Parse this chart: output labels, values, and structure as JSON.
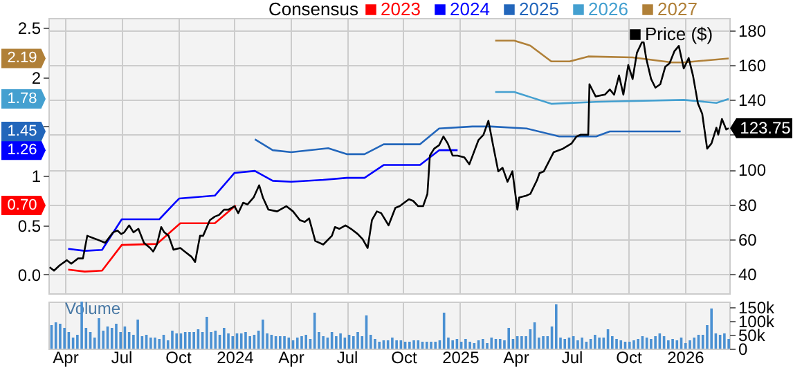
{
  "chart_data": [
    {
      "type": "line",
      "legend_title": "Consensus",
      "annotations": [
        "0.70",
        "1.26",
        "1.45",
        "1.78",
        "2.19"
      ],
      "legend": "top",
      "grid": true,
      "tick_labels": "y",
      "xlim": [
        "2023-03-05",
        "2026-03-14"
      ],
      "xticks": [
        {
          "value": "2023-04-01",
          "label": null
        },
        {
          "value": "2023-07-01",
          "label": null
        },
        {
          "value": "2023-10-01",
          "label": null
        },
        {
          "value": "2024-01-01",
          "label": null
        },
        {
          "value": "2024-04-01",
          "label": null
        },
        {
          "value": "2024-07-01",
          "label": null
        },
        {
          "value": "2024-10-01",
          "label": null
        },
        {
          "value": "2025-01-01",
          "label": null
        },
        {
          "value": "2025-04-01",
          "label": null
        },
        {
          "value": "2025-07-01",
          "label": null
        },
        {
          "value": "2025-10-01",
          "label": null
        },
        {
          "value": "2026-01-01",
          "label": null
        }
      ],
      "ylim": [
        -0.19,
        2.6
      ],
      "yticks": [
        {
          "value": 0,
          "label": "0.0"
        },
        0.5,
        1,
        {
          "value": 1.5,
          "label": null
        },
        2,
        2.5
      ],
      "y2lim": [
        29,
        187
      ],
      "y2ticks": [
        40,
        60,
        80,
        100,
        {
          "value": 120,
          "label": null
        },
        140,
        160,
        180
      ],
      "series": [
        {
          "name": "2023",
          "color": "#ff0000",
          "x": [
            "2023-04-06",
            "2023-05-03",
            "2023-05-31",
            "2023-07-02",
            "2023-08-28",
            "2023-10-05",
            "2023-11-30",
            "2024-01-03"
          ],
          "values": [
            0.05,
            0.03,
            0.04,
            0.3,
            0.31,
            0.52,
            0.52,
            0.7
          ]
        },
        {
          "name": "2024",
          "color": "#0000ff",
          "x": [
            "2023-04-06",
            "2023-05-03",
            "2023-05-31",
            "2023-07-02",
            "2023-09-01",
            "2023-10-03",
            "2023-11-30",
            "2024-01-01",
            "2024-02-03",
            "2024-03-03",
            "2024-04-02",
            "2024-05-24",
            "2024-07-01",
            "2024-07-30",
            "2024-08-30",
            "2024-10-28",
            "2024-11-28",
            "2024-12-28"
          ],
          "values": [
            0.26,
            0.24,
            0.25,
            0.56,
            0.56,
            0.77,
            0.8,
            1.03,
            1.05,
            0.95,
            0.94,
            0.96,
            0.98,
            0.98,
            1.11,
            1.11,
            1.26,
            1.26
          ]
        },
        {
          "name": "2025",
          "color": "#2266bb",
          "x": [
            "2024-02-03",
            "2024-03-03",
            "2024-04-02",
            "2024-06-01",
            "2024-07-01",
            "2024-07-30",
            "2024-08-30",
            "2024-10-28",
            "2024-11-28",
            "2025-01-21",
            "2025-02-20",
            "2025-04-19",
            "2025-06-11",
            "2025-08-10",
            "2025-09-01",
            "2025-12-25"
          ],
          "values": [
            1.37,
            1.26,
            1.24,
            1.28,
            1.22,
            1.22,
            1.32,
            1.32,
            1.48,
            1.5,
            1.5,
            1.48,
            1.4,
            1.4,
            1.45,
            1.45
          ]
        },
        {
          "name": "2026",
          "color": "#44a0d0",
          "x": [
            "2025-02-27",
            "2025-03-30",
            "2025-05-29",
            "2025-08-09",
            "2025-12-30",
            "2026-02-21",
            "2026-03-13"
          ],
          "values": [
            1.85,
            1.85,
            1.73,
            1.75,
            1.77,
            1.74,
            1.78
          ]
        },
        {
          "name": "2027",
          "color": "#b08038",
          "x": [
            "2025-02-27",
            "2025-03-30",
            "2025-04-25",
            "2025-05-29",
            "2025-06-28",
            "2025-07-28",
            "2025-10-08",
            "2025-12-11",
            "2025-12-30",
            "2026-03-13"
          ],
          "values": [
            2.37,
            2.37,
            2.32,
            2.16,
            2.16,
            2.21,
            2.2,
            2.15,
            2.15,
            2.19
          ]
        },
        {
          "name": "Price ($)",
          "color": "#000000",
          "axis": "y2",
          "x": [
            "2023-03-07",
            "2023-03-14",
            "2023-03-23",
            "2023-04-04",
            "2023-04-11",
            "2023-04-22",
            "2023-04-30",
            "2023-05-07",
            "2023-05-22",
            "2023-06-05",
            "2023-06-18",
            "2023-06-25",
            "2023-07-01",
            "2023-07-06",
            "2023-07-14",
            "2023-07-21",
            "2023-07-29",
            "2023-08-07",
            "2023-08-17",
            "2023-08-22",
            "2023-08-28",
            "2023-09-04",
            "2023-09-09",
            "2023-09-16",
            "2023-09-24",
            "2023-10-05",
            "2023-10-12",
            "2023-10-23",
            "2023-10-29",
            "2023-11-06",
            "2023-11-11",
            "2023-11-22",
            "2023-11-30",
            "2023-12-07",
            "2023-12-15",
            "2023-12-22",
            "2024-01-01",
            "2024-01-07",
            "2024-01-15",
            "2024-01-22",
            "2024-02-01",
            "2024-02-10",
            "2024-02-16",
            "2024-02-25",
            "2024-03-10",
            "2024-03-25",
            "2024-04-05",
            "2024-04-16",
            "2024-04-24",
            "2024-05-01",
            "2024-05-11",
            "2024-05-24",
            "2024-06-07",
            "2024-06-12",
            "2024-06-19",
            "2024-06-29",
            "2024-07-08",
            "2024-07-19",
            "2024-07-27",
            "2024-08-04",
            "2024-08-11",
            "2024-08-19",
            "2024-08-26",
            "2024-09-07",
            "2024-09-18",
            "2024-09-25",
            "2024-10-10",
            "2024-10-17",
            "2024-10-25",
            "2024-11-02",
            "2024-11-09",
            "2024-11-13",
            "2024-11-20",
            "2024-11-28",
            "2024-12-05",
            "2024-12-12",
            "2024-12-20",
            "2024-12-28",
            "2025-01-08",
            "2025-01-16",
            "2025-01-31",
            "2025-02-08",
            "2025-02-16",
            "2025-02-23",
            "2025-03-04",
            "2025-03-11",
            "2025-03-19",
            "2025-03-27",
            "2025-03-31",
            "2025-04-04",
            "2025-04-07",
            "2025-04-18",
            "2025-04-25",
            "2025-05-06",
            "2025-05-10",
            "2025-05-17",
            "2025-06-02",
            "2025-06-17",
            "2025-07-01",
            "2025-07-09",
            "2025-07-16",
            "2025-07-28",
            "2025-07-30",
            "2025-08-09",
            "2025-08-24",
            "2025-09-01",
            "2025-09-08",
            "2025-09-16",
            "2025-09-23",
            "2025-10-01",
            "2025-10-08",
            "2025-10-15",
            "2025-10-23",
            "2025-10-26",
            "2025-10-30",
            "2025-11-07",
            "2025-11-14",
            "2025-11-22",
            "2025-11-30",
            "2025-12-07",
            "2025-12-15",
            "2025-12-22",
            "2025-12-30",
            "2026-01-07",
            "2026-01-14",
            "2026-01-22",
            "2026-01-29",
            "2026-02-06",
            "2026-02-13",
            "2026-02-21",
            "2026-02-24",
            "2026-03-02",
            "2026-03-09",
            "2026-03-13"
          ],
          "values": [
            44,
            42,
            45,
            48,
            46,
            49,
            49,
            62,
            60,
            58,
            64,
            65,
            63,
            64,
            68,
            64,
            66,
            58,
            55,
            53,
            57,
            67,
            64,
            62,
            54,
            55,
            53,
            50,
            47,
            62,
            62,
            71,
            73,
            74,
            77,
            77,
            79,
            75,
            81,
            80,
            84,
            91,
            84,
            77,
            76,
            79,
            76,
            71,
            70,
            72,
            59,
            57,
            62,
            67,
            66,
            68,
            66,
            63,
            60,
            55,
            71,
            76,
            75,
            68,
            78,
            79,
            83,
            82,
            79,
            79,
            86,
            108,
            112,
            114,
            119,
            115,
            108,
            108,
            107,
            103,
            117,
            120,
            128,
            115,
            99,
            101,
            93,
            99,
            88,
            77,
            84,
            85,
            86,
            94,
            98,
            99,
            110,
            112,
            115,
            119,
            120,
            120,
            149,
            142,
            143,
            146,
            143,
            154,
            143,
            160,
            152,
            167,
            173,
            173,
            164,
            152,
            147,
            149,
            159,
            161,
            168,
            171,
            158,
            164,
            154,
            138,
            132,
            112,
            115,
            124,
            120,
            129,
            123,
            123.75
          ],
          "value_labels": [
            null,
            null,
            null,
            null,
            null,
            null,
            null,
            null,
            null,
            null,
            null,
            null,
            null,
            null,
            null,
            null,
            null,
            null,
            null,
            null,
            null,
            null,
            null,
            null,
            null,
            null,
            null,
            null,
            null,
            null,
            null,
            null,
            null,
            null,
            null,
            null,
            null,
            null,
            null,
            null,
            null,
            null,
            null,
            null,
            null,
            null,
            null,
            null,
            null,
            null,
            null,
            null,
            null,
            null,
            null,
            null,
            null,
            null,
            null,
            null,
            null,
            null,
            null,
            null,
            null,
            null,
            null,
            null,
            null,
            null,
            null,
            null,
            null,
            null,
            null,
            null,
            null,
            null,
            null,
            null,
            null,
            null,
            null,
            null,
            null,
            null,
            null,
            null,
            null,
            null,
            null,
            null,
            null,
            null,
            null,
            null,
            null,
            null,
            null,
            null,
            null,
            null,
            null,
            null,
            null,
            null,
            null,
            null,
            null,
            null,
            null,
            null,
            null,
            null,
            null,
            null,
            null,
            null,
            null,
            null,
            null,
            null,
            null,
            null,
            null,
            null,
            null,
            null,
            null,
            null,
            null,
            null,
            null,
            "123.75"
          ]
        }
      ]
    },
    {
      "type": "bar",
      "ylabel": "Volume",
      "grid": "x",
      "xlim": [
        "2023-03-05",
        "2026-03-14"
      ],
      "xticks": [
        {
          "value": "2023-04-01",
          "label": "Apr"
        },
        {
          "value": "2023-07-01",
          "label": "Jul"
        },
        {
          "value": "2023-10-01",
          "label": "Oct"
        },
        {
          "value": "2024-01-01",
          "label": "2024"
        },
        {
          "value": "2024-04-01",
          "label": "Apr"
        },
        {
          "value": "2024-07-01",
          "label": "Jul"
        },
        {
          "value": "2024-10-01",
          "label": "Oct"
        },
        {
          "value": "2025-01-01",
          "label": "2025"
        },
        {
          "value": "2025-04-01",
          "label": "Apr"
        },
        {
          "value": "2025-07-01",
          "label": "Jul"
        },
        {
          "value": "2025-10-01",
          "label": "Oct"
        },
        {
          "value": "2026-01-01",
          "label": "2026"
        }
      ],
      "ylim": [
        0,
        170
      ],
      "yticks": [
        0,
        {
          "value": 50,
          "label": "50k"
        },
        {
          "value": 100,
          "label": "100k"
        },
        {
          "value": 150,
          "label": "150k"
        }
      ],
      "x": [
        "2023-03-10",
        "2023-03-17",
        "2023-03-24",
        "2023-03-31",
        "2023-04-07",
        "2023-04-14",
        "2023-04-21",
        "2023-04-28",
        "2023-05-05",
        "2023-05-12",
        "2023-05-19",
        "2023-05-26",
        "2023-06-02",
        "2023-06-09",
        "2023-06-16",
        "2023-06-23",
        "2023-06-30",
        "2023-07-07",
        "2023-07-14",
        "2023-07-21",
        "2023-07-28",
        "2023-08-04",
        "2023-08-11",
        "2023-08-18",
        "2023-08-25",
        "2023-09-01",
        "2023-09-08",
        "2023-09-15",
        "2023-09-22",
        "2023-09-29",
        "2023-10-06",
        "2023-10-13",
        "2023-10-20",
        "2023-10-27",
        "2023-11-03",
        "2023-11-10",
        "2023-11-17",
        "2023-11-24",
        "2023-12-01",
        "2023-12-08",
        "2023-12-15",
        "2023-12-22",
        "2023-12-29",
        "2024-01-05",
        "2024-01-12",
        "2024-01-19",
        "2024-01-26",
        "2024-02-02",
        "2024-02-09",
        "2024-02-16",
        "2024-02-23",
        "2024-03-01",
        "2024-03-08",
        "2024-03-15",
        "2024-03-22",
        "2024-03-29",
        "2024-04-05",
        "2024-04-12",
        "2024-04-19",
        "2024-04-26",
        "2024-05-03",
        "2024-05-10",
        "2024-05-17",
        "2024-05-24",
        "2024-05-31",
        "2024-06-07",
        "2024-06-14",
        "2024-06-21",
        "2024-06-28",
        "2024-07-05",
        "2024-07-12",
        "2024-07-19",
        "2024-07-26",
        "2024-08-02",
        "2024-08-09",
        "2024-08-16",
        "2024-08-23",
        "2024-08-30",
        "2024-09-06",
        "2024-09-13",
        "2024-09-20",
        "2024-09-27",
        "2024-10-04",
        "2024-10-11",
        "2024-10-18",
        "2024-10-25",
        "2024-11-01",
        "2024-11-08",
        "2024-11-15",
        "2024-11-22",
        "2024-11-29",
        "2024-12-06",
        "2024-12-13",
        "2024-12-20",
        "2024-12-27",
        "2025-01-03",
        "2025-01-10",
        "2025-01-17",
        "2025-01-24",
        "2025-01-31",
        "2025-02-07",
        "2025-02-14",
        "2025-02-21",
        "2025-02-28",
        "2025-03-07",
        "2025-03-14",
        "2025-03-21",
        "2025-03-28",
        "2025-04-04",
        "2025-04-11",
        "2025-04-18",
        "2025-04-25",
        "2025-05-02",
        "2025-05-09",
        "2025-05-16",
        "2025-05-23",
        "2025-05-30",
        "2025-06-06",
        "2025-06-13",
        "2025-06-20",
        "2025-06-27",
        "2025-07-04",
        "2025-07-11",
        "2025-07-18",
        "2025-07-25",
        "2025-08-01",
        "2025-08-08",
        "2025-08-15",
        "2025-08-22",
        "2025-08-29",
        "2025-09-05",
        "2025-09-12",
        "2025-09-19",
        "2025-09-26",
        "2025-10-03",
        "2025-10-10",
        "2025-10-17",
        "2025-10-24",
        "2025-10-31",
        "2025-11-07",
        "2025-11-14",
        "2025-11-21",
        "2025-11-28",
        "2025-12-05",
        "2025-12-12",
        "2025-12-19",
        "2025-12-26",
        "2026-01-02",
        "2026-01-09",
        "2026-01-16",
        "2026-01-23",
        "2026-01-30",
        "2026-02-06",
        "2026-02-13",
        "2026-02-20",
        "2026-02-27",
        "2026-03-06",
        "2026-03-13"
      ],
      "series": [
        {
          "color": "#4a90d2",
          "values": [
            85,
            95,
            90,
            75,
            60,
            40,
            50,
            170,
            75,
            60,
            40,
            110,
            65,
            80,
            75,
            90,
            60,
            80,
            60,
            50,
            105,
            45,
            50,
            40,
            40,
            35,
            50,
            30,
            65,
            55,
            55,
            60,
            60,
            60,
            70,
            60,
            115,
            60,
            65,
            50,
            75,
            55,
            45,
            55,
            55,
            60,
            45,
            50,
            65,
            105,
            55,
            50,
            45,
            45,
            45,
            40,
            30,
            40,
            45,
            50,
            35,
            130,
            60,
            45,
            40,
            60,
            45,
            55,
            40,
            50,
            45,
            60,
            45,
            120,
            50,
            35,
            25,
            30,
            30,
            40,
            30,
            30,
            25,
            25,
            30,
            30,
            25,
            25,
            25,
            25,
            30,
            130,
            40,
            30,
            35,
            25,
            35,
            25,
            20,
            30,
            35,
            20,
            40,
            35,
            35,
            30,
            75,
            35,
            45,
            45,
            45,
            70,
            95,
            40,
            45,
            45,
            80,
            160,
            40,
            35,
            40,
            45,
            30,
            40,
            25,
            35,
            50,
            40,
            40,
            70,
            45,
            35,
            30,
            25,
            25,
            30,
            35,
            45,
            40,
            35,
            45,
            55,
            45,
            30,
            35,
            30,
            40,
            20,
            30,
            40,
            50,
            50,
            85,
            145,
            55,
            50,
            55,
            35
          ]
        }
      ]
    }
  ]
}
